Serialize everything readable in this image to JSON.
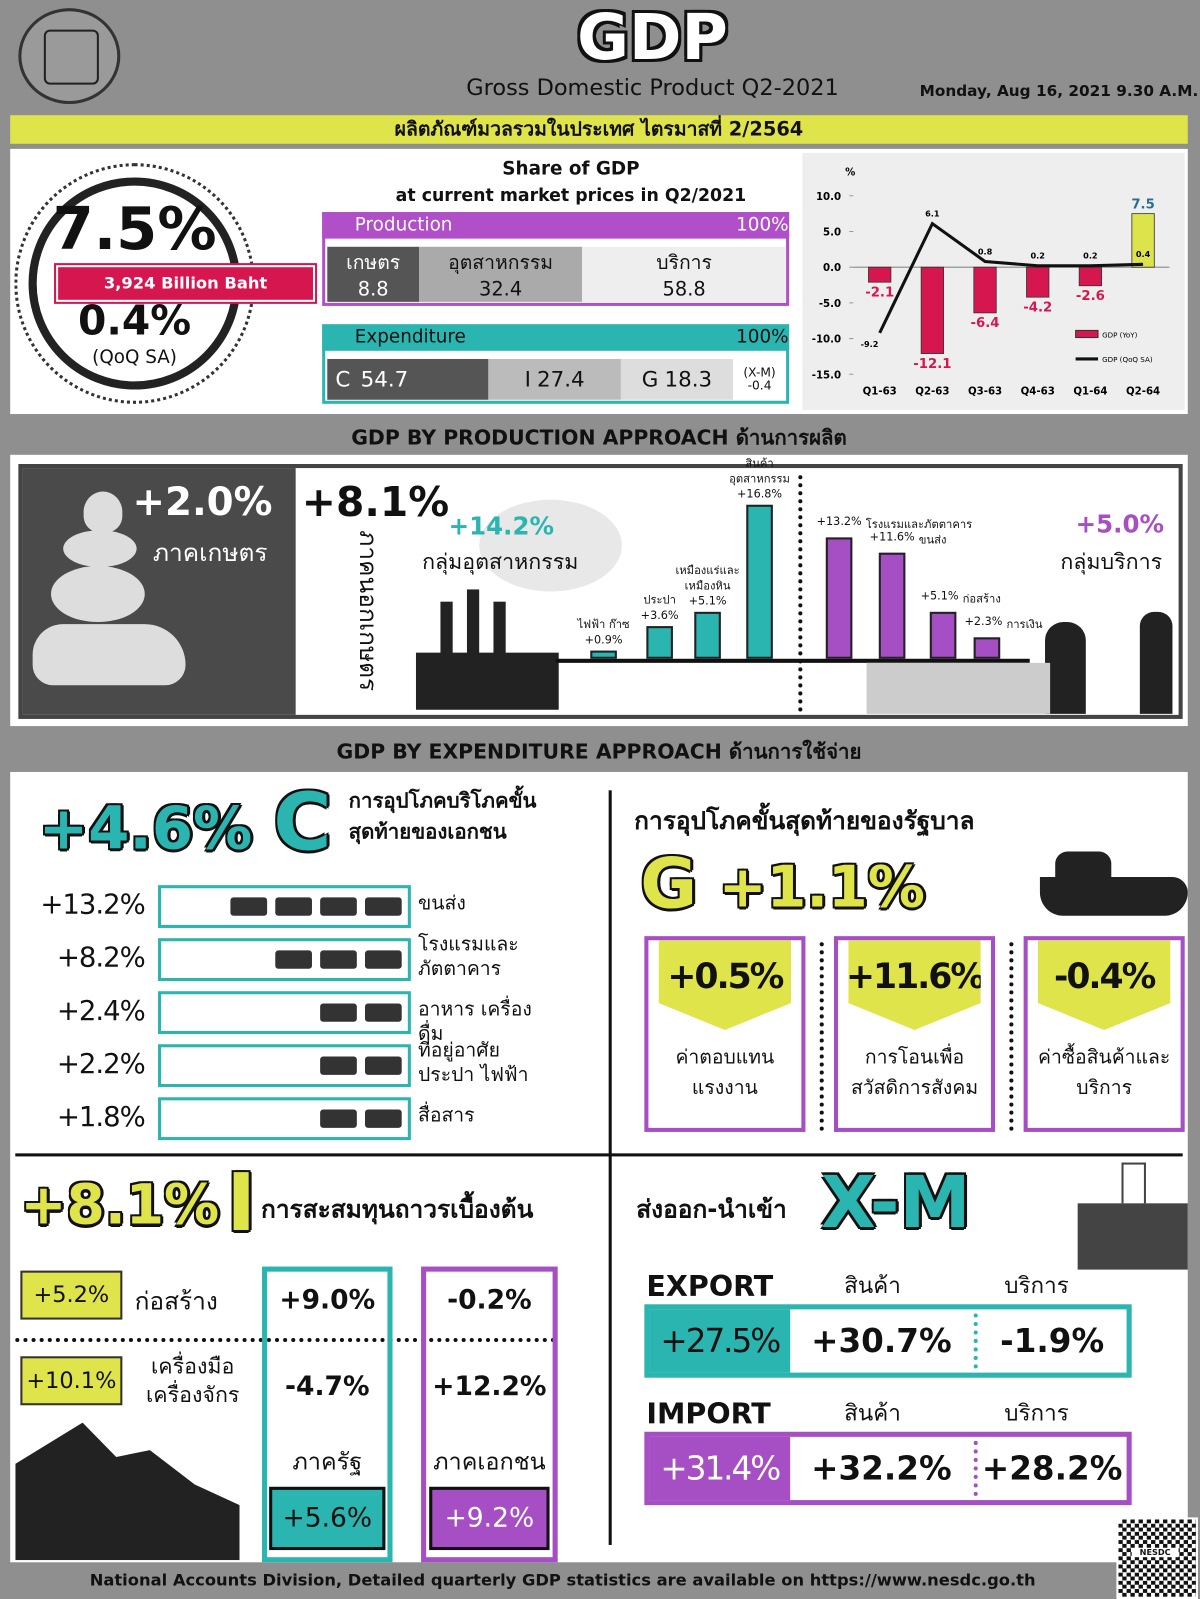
{
  "header": {
    "title": "GDP",
    "subtitle": "Gross Domestic Product Q2-2021",
    "date": "Monday, Aug 16, 2021 9.30 A.M.",
    "banner": "ผลิตภัณฑ์มวลรวมในประเทศ ไตรมาสที่ 2/2564"
  },
  "summary": {
    "yoy": "7.5%",
    "value": "3,924 Billion Baht",
    "qoq": "0.4%",
    "qoq_note": "(QoQ SA)"
  },
  "share": {
    "title": "Share of GDP",
    "subtitle": "at current market prices in Q2/2021",
    "production": {
      "label": "Production",
      "total": "100%",
      "items": [
        {
          "label": "เกษตร",
          "value": 8.8
        },
        {
          "label": "อุตสาหกรรม",
          "value": 32.4
        },
        {
          "label": "บริการ",
          "value": 58.8
        }
      ]
    },
    "expenditure": {
      "label": "Expenditure",
      "total": "100%",
      "items": [
        {
          "label": "C",
          "value": 54.7
        },
        {
          "label": "I",
          "value": 27.4
        },
        {
          "label": "G",
          "value": 18.3
        },
        {
          "label": "(X-M)",
          "value": -0.4
        }
      ]
    }
  },
  "chart_data": {
    "type": "bar-line",
    "y_label": "%",
    "categories": [
      "Q1-63",
      "Q2-63",
      "Q3-63",
      "Q4-63",
      "Q1-64",
      "Q2-64"
    ],
    "ylim": [
      -15,
      10
    ],
    "yticks": [
      {
        "value": 10,
        "label": "10.0"
      },
      {
        "value": 5,
        "label": "5.0"
      },
      {
        "value": 0,
        "label": "0.0"
      },
      {
        "value": -5,
        "label": "-5.0"
      },
      {
        "value": -10,
        "label": "-10.0"
      },
      {
        "value": -15,
        "label": "-15.0"
      }
    ],
    "series": [
      {
        "name": "GDP (YoY)",
        "type": "bar",
        "color": "#d6174f",
        "colors": [
          "#d6174f",
          "#d6174f",
          "#d6174f",
          "#d6174f",
          "#d6174f",
          "#dde34a"
        ],
        "values": [
          -2.1,
          -12.1,
          -6.4,
          -4.2,
          -2.6,
          7.5
        ]
      },
      {
        "name": "GDP (QoQ SA)",
        "type": "line",
        "color": "#111111",
        "values": [
          -9.2,
          6.1,
          0.8,
          0.2,
          0.2,
          0.4
        ]
      }
    ]
  },
  "production": {
    "title": "GDP BY PRODUCTION APPROACH ด้านการผลิต",
    "agriculture": {
      "value": "+2.0%",
      "label": "ภาคเกษตร"
    },
    "non_agriculture": {
      "value": "+8.1%",
      "label": "ภาคนอกเกษตร"
    },
    "industry": {
      "value": "+14.2%",
      "label": "กลุ่มอุตสาหกรรม",
      "color": "#2bb5b0",
      "categories": [
        "ไฟฟ้า ก๊าซ",
        "ประปา",
        "เหมืองแร่และเหมืองหิน",
        "สินค้าอุตสาหกรรม"
      ],
      "values": [
        0.9,
        3.6,
        5.1,
        16.8
      ],
      "value_labels": [
        "+0.9%",
        "+3.6%",
        "+5.1%",
        "+16.8%"
      ]
    },
    "services": {
      "value": "+5.0%",
      "label": "กลุ่มบริการ",
      "color": "#a64fc4",
      "categories": [
        "โรงแรมและภัตตาคาร",
        "ขนส่ง",
        "ก่อสร้าง",
        "การเงิน"
      ],
      "values": [
        13.2,
        11.6,
        5.1,
        2.3
      ],
      "value_labels": [
        "+13.2%",
        "+11.6%",
        "+5.1%",
        "+2.3%"
      ]
    }
  },
  "expenditure": {
    "title": "GDP BY EXPENDITURE APPROACH ด้านการใช้จ่าย",
    "consumption": {
      "value": "+4.6%",
      "letter": "C",
      "label": "การอุปโภคบริโภคขั้นสุดท้ายของเอกชน",
      "items": [
        {
          "value": "+13.2%",
          "label": "ขนส่ง"
        },
        {
          "value": "+8.2%",
          "label": "โรงแรมและภัตตาคาร"
        },
        {
          "value": "+2.4%",
          "label": "อาหาร เครื่องดื่ม"
        },
        {
          "value": "+2.2%",
          "label": "ที่อยู่อาศัย ประปา ไฟฟ้า"
        },
        {
          "value": "+1.8%",
          "label": "สื่อสาร"
        }
      ]
    },
    "government": {
      "label": "การอุปโภคขั้นสุดท้ายของรัฐบาล",
      "letter": "G",
      "value": "+1.1%",
      "items": [
        {
          "value": "+0.5%",
          "label": "ค่าตอบแทนแรงงาน"
        },
        {
          "value": "+11.6%",
          "label": "การโอนเพื่อสวัสดิการสังคม"
        },
        {
          "value": "-0.4%",
          "label": "ค่าซื้อสินค้าและบริการ"
        }
      ]
    },
    "investment": {
      "value": "+8.1%",
      "letter": "I",
      "label": "การสะสมทุนถาวรเบื้องต้น",
      "rows": [
        {
          "value": "+5.2%",
          "label": "ก่อสร้าง",
          "public": "+9.0%",
          "private": "-0.2%"
        },
        {
          "value": "+10.1%",
          "label": "เครื่องมือเครื่องจักร",
          "public": "-4.7%",
          "private": "+12.2%"
        }
      ],
      "public": {
        "label": "ภาครัฐ",
        "value": "+5.6%"
      },
      "private": {
        "label": "ภาคเอกชน",
        "value": "+9.2%"
      }
    },
    "trade": {
      "label": "ส่งออก-นำเข้า",
      "letter": "X-M",
      "export": {
        "label": "EXPORT",
        "columns": [
          "สินค้า",
          "บริการ"
        ],
        "total": "+27.5%",
        "goods": "+30.7%",
        "services": "-1.9%"
      },
      "import": {
        "label": "IMPORT",
        "columns": [
          "สินค้า",
          "บริการ"
        ],
        "total": "+31.4%",
        "goods": "+32.2%",
        "services": "+28.2%"
      }
    }
  },
  "footer": {
    "text": "National Accounts Division, Detailed quarterly GDP statistics are available on https://www.nesdc.go.th",
    "qr_label": "NESDC"
  }
}
